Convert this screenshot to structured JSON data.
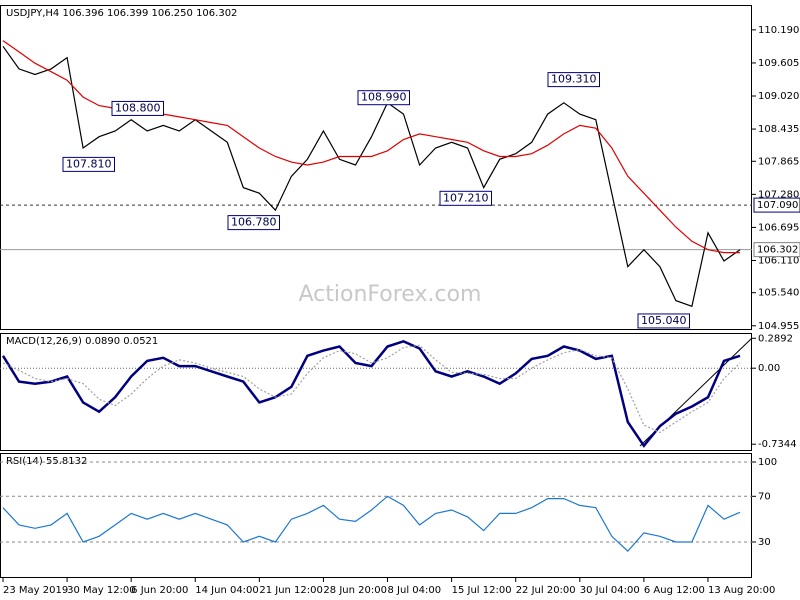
{
  "chart_data": [
    {
      "type": "line",
      "title": "USDJPY,H4  106.396 106.399 106.250 106.302",
      "watermark": "ActionForex.com",
      "ylim": [
        104.88,
        110.63
      ],
      "yticks": [
        {
          "value": 110.19,
          "label": "110.190"
        },
        109.605,
        {
          "value": 109.02,
          "label": "109.020"
        },
        108.435,
        107.865,
        {
          "value": 107.28,
          "label": "107.280"
        },
        106.695,
        {
          "value": 106.11,
          "label": "106.110"
        },
        {
          "value": 105.54,
          "label": "105.540"
        },
        104.955
      ],
      "grid": false,
      "series": [
        {
          "color": "#000000",
          "values": [
            109.9,
            109.5,
            109.4,
            109.5,
            109.7,
            108.1,
            108.3,
            108.4,
            108.6,
            108.4,
            108.5,
            108.4,
            108.6,
            108.4,
            108.2,
            107.4,
            107.3,
            107.0,
            107.6,
            107.9,
            108.4,
            107.9,
            107.8,
            108.3,
            108.9,
            108.7,
            107.8,
            108.1,
            108.2,
            108.1,
            107.4,
            107.9,
            108.0,
            108.2,
            108.7,
            108.9,
            108.7,
            108.6,
            107.3,
            106.0,
            106.3,
            106.0,
            105.4,
            105.3,
            106.6,
            106.1,
            106.3
          ]
        },
        {
          "color": "#e00000",
          "values": [
            110.0,
            109.8,
            109.6,
            109.45,
            109.3,
            109.0,
            108.85,
            108.8,
            108.75,
            108.7,
            108.7,
            108.65,
            108.6,
            108.55,
            108.5,
            108.3,
            108.1,
            107.95,
            107.85,
            107.8,
            107.85,
            107.95,
            107.95,
            107.95,
            108.05,
            108.25,
            108.35,
            108.3,
            108.25,
            108.2,
            108.05,
            107.95,
            107.95,
            108.0,
            108.15,
            108.35,
            108.5,
            108.45,
            108.1,
            107.6,
            107.3,
            107.0,
            106.7,
            106.45,
            106.3,
            106.25,
            106.25
          ]
        }
      ],
      "hlines": [
        {
          "value": 107.09,
          "label": "107.090",
          "color": "#000080",
          "dashed": true
        },
        {
          "value": 106.302,
          "label": "106.302",
          "color": "#808080",
          "dashed": false
        }
      ],
      "annotations": [
        {
          "value": 107.81,
          "label": "107.810"
        },
        {
          "value": 108.8,
          "label": "108.800"
        },
        {
          "value": 106.78,
          "label": "106.780"
        },
        {
          "value": 108.99,
          "label": "108.990"
        },
        {
          "value": 107.21,
          "label": "107.210"
        },
        {
          "value": 109.31,
          "label": "109.310"
        },
        {
          "value": 105.04,
          "label": "105.040"
        }
      ]
    },
    {
      "type": "line",
      "title": "MACD(12,26,9) 0.0890 0.0521",
      "ylim": [
        -0.8,
        0.34
      ],
      "yticks": [
        0.2892,
        {
          "value": 0,
          "label": "0.00"
        },
        -0.7344
      ],
      "zero_line": true,
      "series": [
        {
          "color": "#000080",
          "values": [
            0.12,
            -0.13,
            -0.15,
            -0.13,
            -0.08,
            -0.33,
            -0.42,
            -0.28,
            -0.08,
            0.07,
            0.1,
            0.02,
            0.02,
            -0.03,
            -0.08,
            -0.13,
            -0.33,
            -0.28,
            -0.18,
            0.12,
            0.17,
            0.21,
            0.05,
            0.02,
            0.21,
            0.26,
            0.19,
            -0.03,
            -0.08,
            -0.03,
            -0.08,
            -0.15,
            -0.05,
            0.09,
            0.12,
            0.21,
            0.17,
            0.09,
            0.12,
            -0.52,
            -0.75,
            -0.56,
            -0.44,
            -0.37,
            -0.28,
            0.07,
            0.12
          ]
        },
        {
          "color": "#a0a0a0",
          "values": [
            0.05,
            -0.02,
            -0.1,
            -0.13,
            -0.1,
            -0.15,
            -0.3,
            -0.36,
            -0.25,
            -0.1,
            0.02,
            0.08,
            0.05,
            0.0,
            -0.04,
            -0.08,
            -0.2,
            -0.28,
            -0.25,
            -0.05,
            0.1,
            0.17,
            0.14,
            0.05,
            0.1,
            0.2,
            0.22,
            0.08,
            -0.04,
            -0.05,
            -0.06,
            -0.1,
            -0.1,
            0.0,
            0.08,
            0.15,
            0.18,
            0.12,
            0.1,
            -0.2,
            -0.55,
            -0.62,
            -0.52,
            -0.42,
            -0.33,
            -0.1,
            0.05
          ]
        }
      ]
    },
    {
      "type": "line",
      "title": "RSI(14) 55.8132",
      "ylim": [
        -1.5,
        107.9
      ],
      "yticks": [
        100,
        70,
        30
      ],
      "grid": true,
      "categories": [
        "23 May 2019",
        null,
        null,
        null,
        "30 May 12:00",
        null,
        null,
        null,
        "6 Jun 20:00",
        null,
        null,
        null,
        "14 Jun 04:00",
        null,
        null,
        null,
        "21 Jun 12:00",
        null,
        null,
        null,
        "28 Jun 20:00",
        null,
        null,
        null,
        "8 Jul 04:00",
        null,
        null,
        null,
        "15 Jul 12:00",
        null,
        null,
        null,
        "22 Jul 20:00",
        null,
        null,
        null,
        "30 Jul 04:00",
        null,
        null,
        null,
        "6 Aug 12:00",
        null,
        null,
        null,
        "13 Aug 20:00",
        null,
        null
      ],
      "series": [
        {
          "color": "#1e78d2",
          "values": [
            60,
            45,
            42,
            45,
            55,
            30,
            35,
            45,
            55,
            50,
            55,
            50,
            55,
            50,
            45,
            30,
            35,
            30,
            50,
            55,
            62,
            50,
            48,
            58,
            70,
            62,
            45,
            55,
            58,
            52,
            40,
            55,
            55,
            60,
            68,
            68,
            62,
            60,
            35,
            22,
            38,
            35,
            30,
            30,
            62,
            50,
            56
          ]
        }
      ]
    }
  ]
}
